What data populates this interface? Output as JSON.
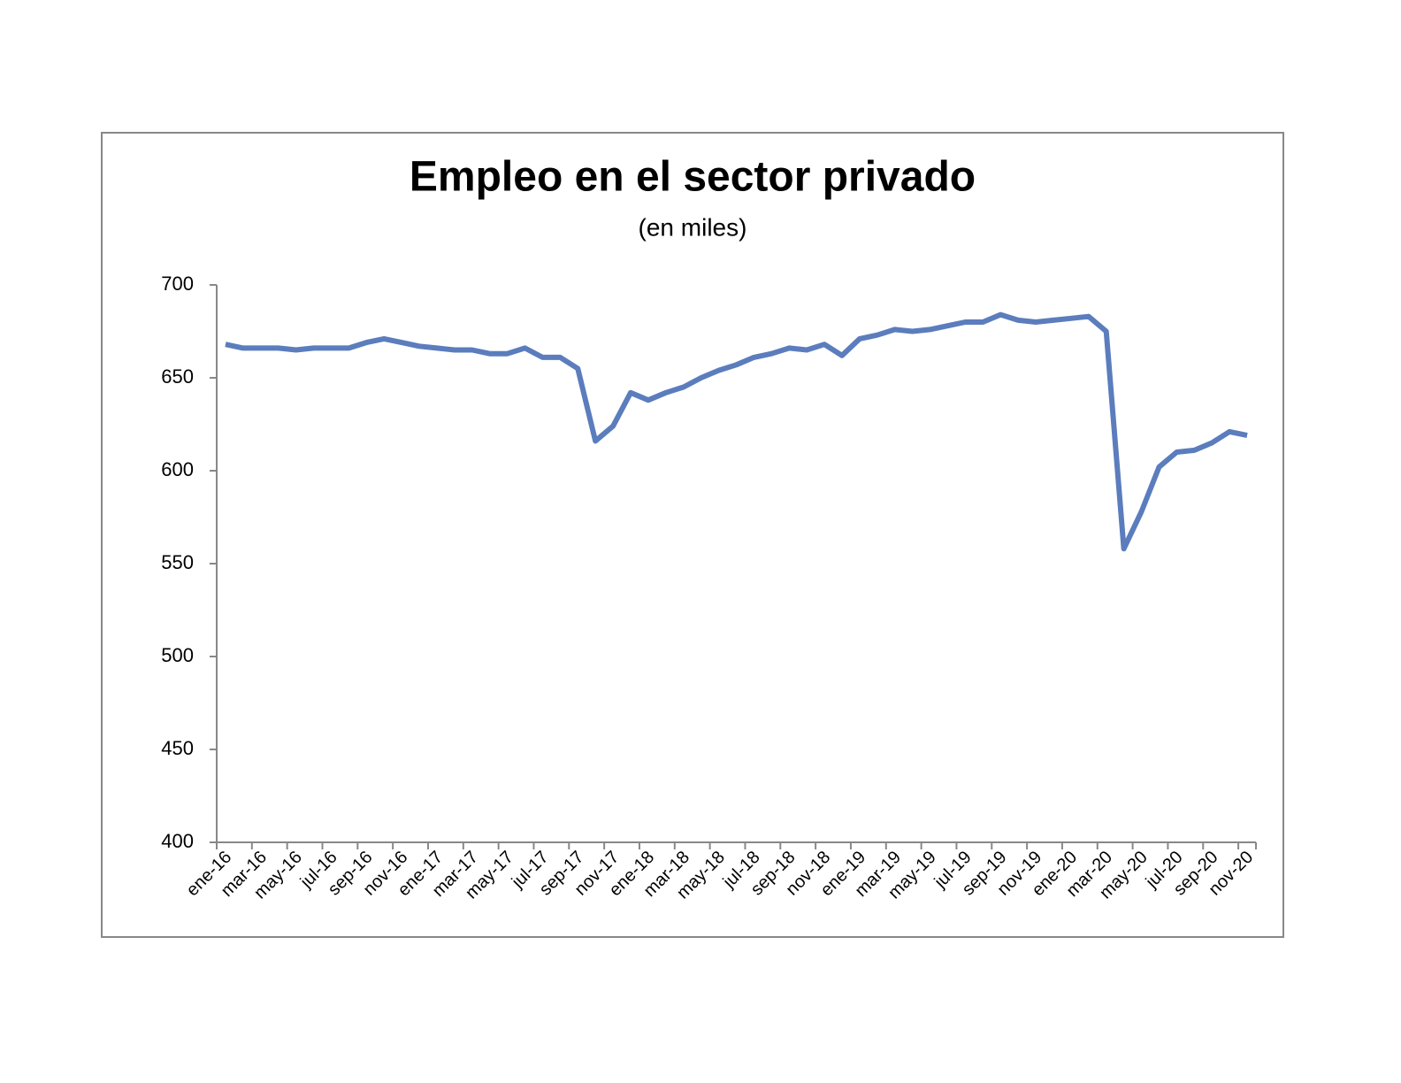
{
  "chart_data": {
    "type": "line",
    "title": "Empleo en el sector privado",
    "subtitle": "(en miles)",
    "categories": [
      "ene-16",
      null,
      "mar-16",
      null,
      "may-16",
      null,
      "jul-16",
      null,
      "sep-16",
      null,
      "nov-16",
      null,
      "ene-17",
      null,
      "mar-17",
      null,
      "may-17",
      null,
      "jul-17",
      null,
      "sep-17",
      null,
      "nov-17",
      null,
      "ene-18",
      null,
      "mar-18",
      null,
      "may-18",
      null,
      "jul-18",
      null,
      "sep-18",
      null,
      "nov-18",
      null,
      "ene-19",
      null,
      "mar-19",
      null,
      "may-19",
      null,
      "jul-19",
      null,
      "sep-19",
      null,
      "nov-19",
      null,
      "ene-20",
      null,
      "mar-20",
      null,
      "may-20",
      null,
      "jul-20",
      null,
      "sep-20",
      null,
      "nov-20"
    ],
    "series": [
      {
        "name": "Empleo",
        "color": "#5b7dbd",
        "values": [
          668,
          666,
          666,
          666,
          665,
          666,
          666,
          666,
          669,
          671,
          669,
          667,
          666,
          665,
          665,
          663,
          663,
          666,
          661,
          661,
          655,
          616,
          624,
          642,
          638,
          642,
          645,
          650,
          654,
          657,
          661,
          663,
          666,
          665,
          668,
          662,
          671,
          673,
          676,
          675,
          676,
          678,
          680,
          680,
          684,
          681,
          680,
          681,
          682,
          683,
          675,
          558,
          578,
          602,
          610,
          611,
          615,
          621,
          619
        ]
      }
    ],
    "ylim": [
      400,
      700
    ],
    "yticks": [
      400,
      450,
      500,
      550,
      600,
      650,
      700
    ]
  }
}
